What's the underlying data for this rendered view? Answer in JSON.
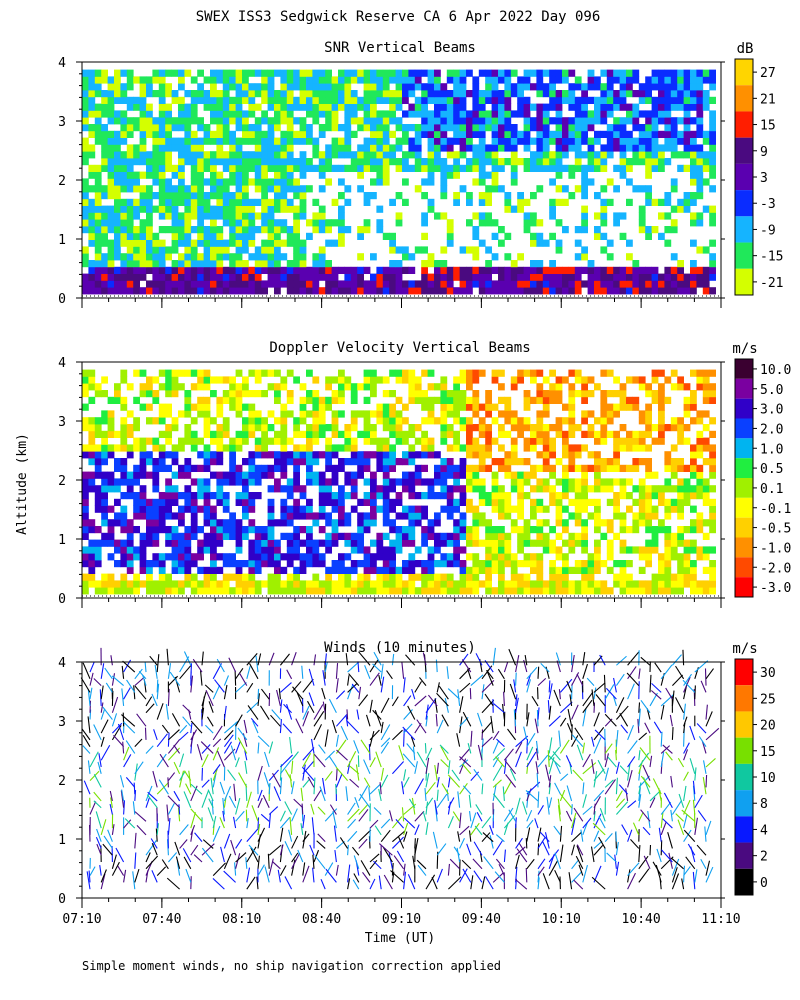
{
  "title": "SWEX ISS3 Sedgwick Reserve CA   6 Apr 2022 Day 096",
  "footer": "Simple moment winds, no ship navigation correction applied",
  "y_label": "Altitude (km)",
  "x_label": "Time (UT)",
  "chart_data": [
    {
      "type": "heatmap",
      "title": "SNR Vertical Beams",
      "unit": "dB",
      "xlim": [
        "07:10",
        "11:10"
      ],
      "ylim": [
        0,
        4
      ],
      "y_ticks": [
        "0",
        "1",
        "2",
        "3",
        "4"
      ],
      "colorbar": {
        "labels": [
          "27",
          "21",
          "15",
          "9",
          "3",
          "-3",
          "-9",
          "-15",
          "-21"
        ],
        "colors": [
          "#ffd500",
          "#ff9000",
          "#ff1e00",
          "#4a0a80",
          "#5a00b0",
          "#0a2cff",
          "#15b4ff",
          "#20e85a",
          "#d4ff00"
        ]
      }
    },
    {
      "type": "heatmap",
      "title": "Doppler Velocity Vertical Beams",
      "unit": "m/s",
      "xlim": [
        "07:10",
        "11:10"
      ],
      "ylim": [
        0,
        4
      ],
      "y_ticks": [
        "0",
        "1",
        "2",
        "3",
        "4"
      ],
      "colorbar": {
        "labels": [
          "10.0",
          "5.0",
          "3.0",
          "2.0",
          "1.0",
          "0.5",
          "0.1",
          "-0.1",
          "-0.5",
          "-1.0",
          "-2.0",
          "-3.0"
        ],
        "colors": [
          "#3a0030",
          "#7a00a0",
          "#3000c8",
          "#0a40ff",
          "#00b4f0",
          "#20ee40",
          "#a0f000",
          "#ffff00",
          "#ffd000",
          "#ff9000",
          "#ff4a00",
          "#ff0000"
        ]
      }
    },
    {
      "type": "scatter",
      "title": "Winds (10 minutes)",
      "unit": "m/s",
      "xlim": [
        "07:10",
        "11:10"
      ],
      "ylim": [
        0,
        4
      ],
      "y_ticks": [
        "0",
        "1",
        "2",
        "3",
        "4"
      ],
      "x_ticks": [
        "07:10",
        "07:40",
        "08:10",
        "08:40",
        "09:10",
        "09:40",
        "10:10",
        "10:40",
        "11:10"
      ],
      "colorbar": {
        "labels": [
          "30",
          "25",
          "20",
          "15",
          "10",
          "8",
          "4",
          "2",
          "0"
        ],
        "colors": [
          "#ff0000",
          "#ff7800",
          "#ffc800",
          "#78e000",
          "#10c8a0",
          "#10a0f0",
          "#0818ff",
          "#4a0a80",
          "#000000"
        ]
      }
    }
  ]
}
